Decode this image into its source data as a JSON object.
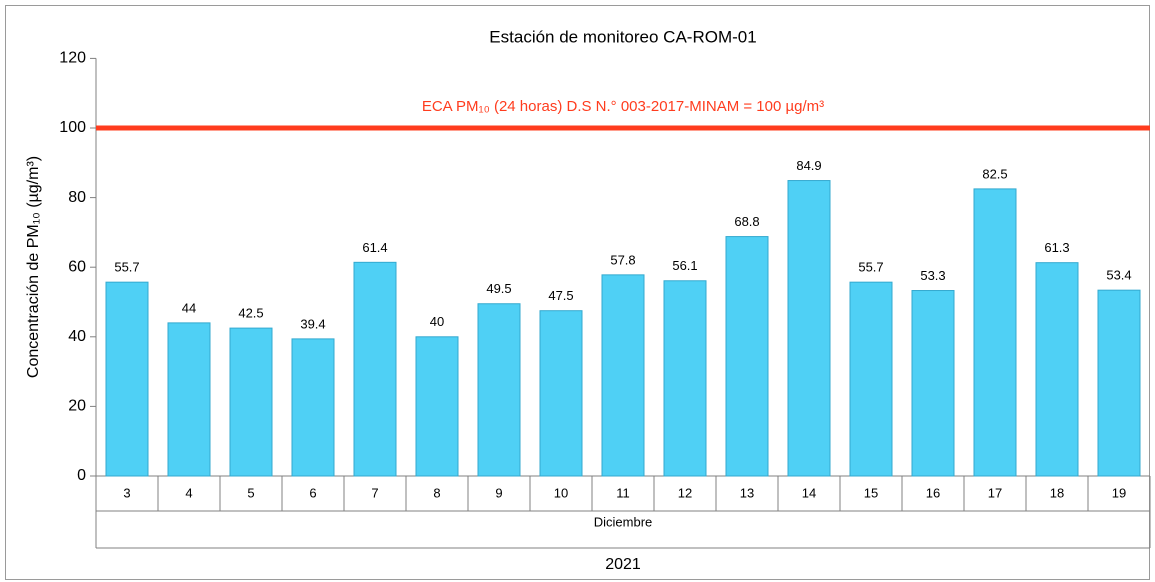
{
  "chart_data": {
    "type": "bar",
    "title": "Estación de monitoreo CA-ROM-01",
    "y_label": "Concentración de PM₁₀ (µg/m³)",
    "categories": [
      "3",
      "4",
      "5",
      "6",
      "7",
      "8",
      "9",
      "10",
      "11",
      "12",
      "13",
      "14",
      "15",
      "16",
      "17",
      "18",
      "19"
    ],
    "values": [
      55.7,
      44,
      42.5,
      39.4,
      61.4,
      40,
      49.5,
      47.5,
      57.8,
      56.1,
      68.8,
      84.9,
      55.7,
      53.3,
      82.5,
      61.3,
      53.4
    ],
    "color": "#4fd0f5",
    "x_group_label": "Diciembre",
    "x_year_label": "2021",
    "reference_line": {
      "value": 100,
      "label": "ECA PM₁₀ (24 horas) D.S N.° 003-2017-MINAM = 100 µg/m³",
      "color": "#ff3c1e"
    },
    "ylim": [
      0,
      120
    ],
    "yticks": [
      0,
      20,
      40,
      60,
      80,
      100,
      120
    ]
  }
}
